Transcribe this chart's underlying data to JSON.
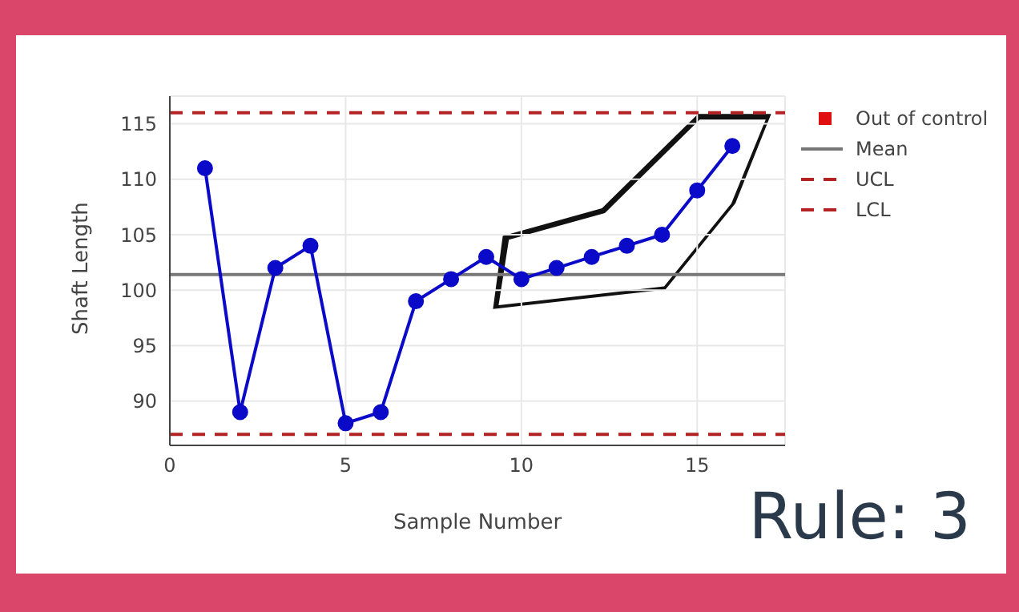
{
  "chart_data": {
    "type": "line",
    "xlabel": "Sample Number",
    "ylabel": "Shaft Length",
    "x": [
      1,
      2,
      3,
      4,
      5,
      6,
      7,
      8,
      9,
      10,
      11,
      12,
      13,
      14,
      15,
      16
    ],
    "series": [
      {
        "color": "#0a0ac8",
        "marker": "circle",
        "values": [
          111,
          89,
          102,
          104,
          88,
          89,
          99,
          101,
          103,
          101,
          102,
          103,
          104,
          105,
          109,
          113
        ]
      },
      {
        "name": "Out of control",
        "type": "scatter",
        "marker": "square",
        "color": "#e01010",
        "values": [
          null,
          null,
          null,
          null,
          null,
          null,
          null,
          null,
          null,
          null,
          null,
          null,
          null,
          null,
          null,
          null
        ]
      }
    ],
    "ref_lines": [
      {
        "axis": "y",
        "value": 101.4,
        "label": "Mean",
        "color": "#777777",
        "line_style": "solid"
      },
      {
        "axis": "y",
        "value": 116,
        "label": "UCL",
        "color": "#b22222",
        "line_style": "dashed"
      },
      {
        "axis": "y",
        "value": 87,
        "label": "LCL",
        "color": "#b22222",
        "line_style": "dashed"
      }
    ],
    "xlim": [
      0,
      17.5
    ],
    "xticks": [
      0,
      5,
      10,
      15
    ],
    "ylim": [
      86,
      117.5
    ],
    "yticks": [
      90,
      95,
      100,
      105,
      110,
      115
    ],
    "grid": true,
    "legend": "top right",
    "annotations": [
      "Rule: 3"
    ]
  }
}
